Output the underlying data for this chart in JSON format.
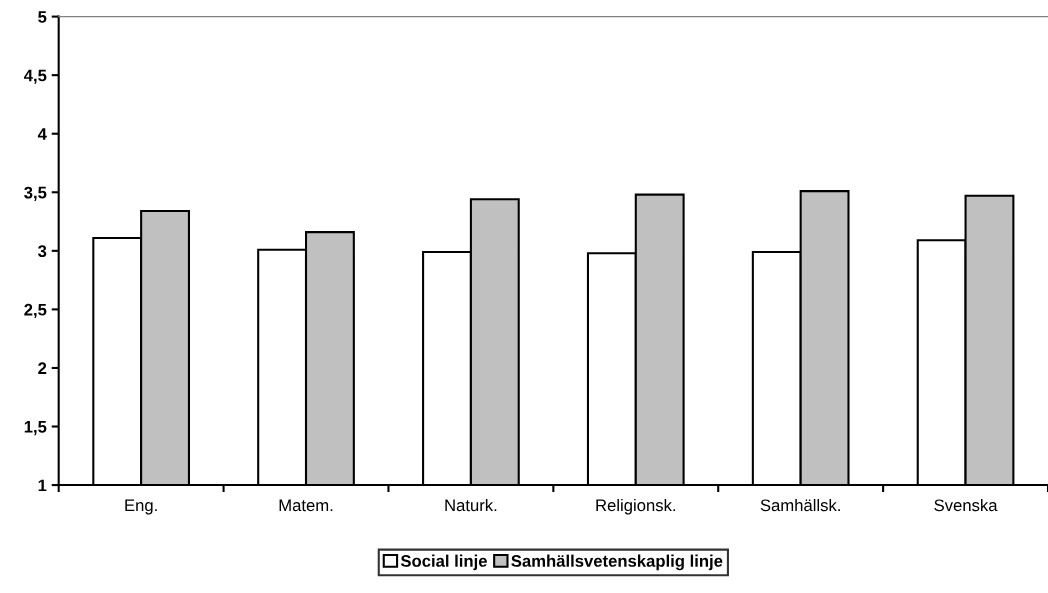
{
  "chart_data": {
    "type": "bar",
    "categories": [
      "Eng.",
      "Matem.",
      "Naturk.",
      "Religionsk.",
      "Samhällsk.",
      "Svenska"
    ],
    "series": [
      {
        "name": "Social linje",
        "color": "#ffffff",
        "values": [
          3.11,
          3.01,
          2.99,
          2.98,
          2.99,
          3.09
        ]
      },
      {
        "name": "Samhällsvetenskaplig linje",
        "color": "#c0c0c0",
        "values": [
          3.34,
          3.16,
          3.44,
          3.48,
          3.51,
          3.47
        ]
      }
    ],
    "ylim": [
      1,
      5
    ],
    "yticks": [
      1,
      {
        "value": 1.5,
        "label": "1,5"
      },
      2,
      {
        "value": 2.5,
        "label": "2,5"
      },
      3,
      {
        "value": 3.5,
        "label": "3,5"
      },
      4,
      {
        "value": 4.5,
        "label": "4,5"
      },
      5
    ],
    "grid": false,
    "legend": "bottom"
  }
}
